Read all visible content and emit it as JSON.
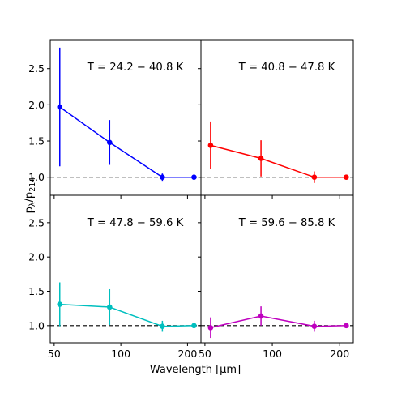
{
  "chart_data": {
    "type": "line",
    "xlabel": "Wavelength [μm]",
    "ylabel": "pλ/p214",
    "ylabel_parts": {
      "main": "p",
      "sub_main": "λ",
      "slash": "/",
      "base": "p",
      "sub_base": "214"
    },
    "xscale": "log",
    "xlim": [
      48,
      230
    ],
    "ylim": [
      0.75,
      2.9
    ],
    "xticks": [
      50,
      100,
      200
    ],
    "yticks": [
      1.0,
      1.5,
      2.0,
      2.5
    ],
    "reference_line": {
      "y": 1.0,
      "style": "dashed",
      "color": "#000000"
    },
    "panels": [
      {
        "title": "T = 24.2 − 40.8 K",
        "color": "#0000ff",
        "show_x_ticks": false,
        "show_y_ticks": true,
        "points": [
          {
            "x": 53,
            "y": 1.97,
            "err": 0.82
          },
          {
            "x": 89,
            "y": 1.48,
            "err": 0.31
          },
          {
            "x": 154,
            "y": 1.0,
            "err": 0.05
          },
          {
            "x": 214,
            "y": 1.0,
            "err": 0.0
          }
        ]
      },
      {
        "title": "T = 40.8 − 47.8 K",
        "color": "#ff0000",
        "show_x_ticks": false,
        "show_y_ticks": false,
        "points": [
          {
            "x": 53,
            "y": 1.44,
            "err": 0.33
          },
          {
            "x": 89,
            "y": 1.26,
            "err": 0.25
          },
          {
            "x": 154,
            "y": 1.0,
            "err": 0.08
          },
          {
            "x": 214,
            "y": 1.0,
            "err": 0.0
          }
        ]
      },
      {
        "title": "T = 47.8 − 59.6 K",
        "color": "#00bfbf",
        "show_x_ticks": true,
        "show_y_ticks": true,
        "points": [
          {
            "x": 53,
            "y": 1.31,
            "err": 0.32
          },
          {
            "x": 89,
            "y": 1.27,
            "err": 0.26
          },
          {
            "x": 154,
            "y": 0.99,
            "err": 0.08
          },
          {
            "x": 214,
            "y": 1.0,
            "err": 0.0
          }
        ]
      },
      {
        "title": "T = 59.6 − 85.8 K",
        "color": "#bf00bf",
        "show_x_ticks": true,
        "show_y_ticks": false,
        "points": [
          {
            "x": 53,
            "y": 0.97,
            "err": 0.15
          },
          {
            "x": 89,
            "y": 1.14,
            "err": 0.14
          },
          {
            "x": 154,
            "y": 0.99,
            "err": 0.08
          },
          {
            "x": 214,
            "y": 1.0,
            "err": 0.0
          }
        ]
      }
    ]
  }
}
